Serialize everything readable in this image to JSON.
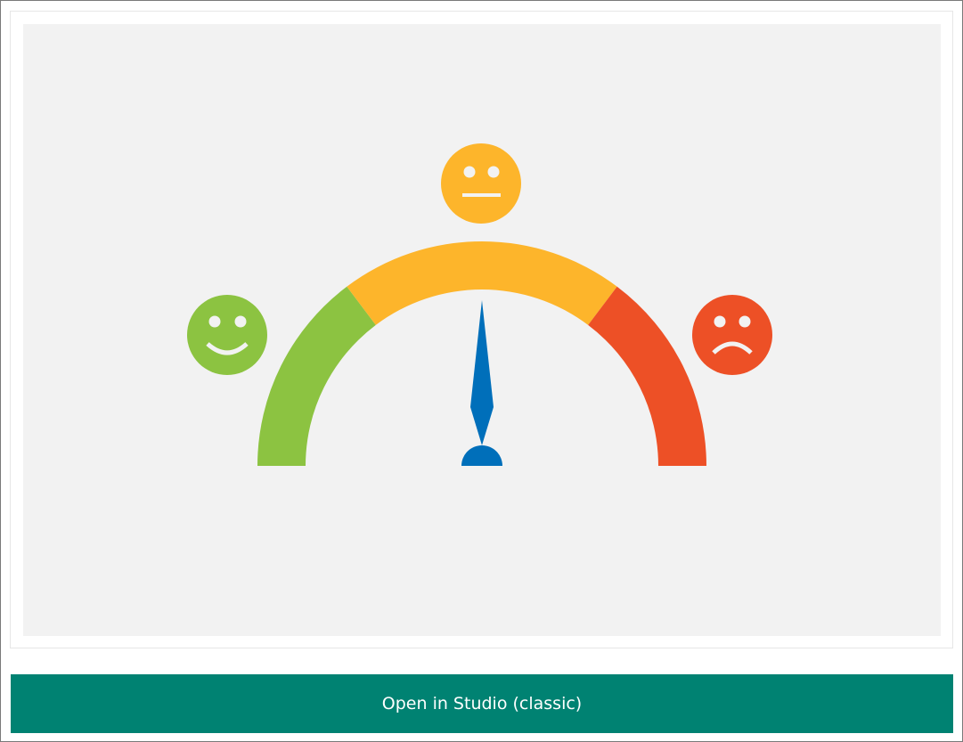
{
  "gauge": {
    "segments": [
      {
        "name": "good",
        "color": "#8cc341"
      },
      {
        "name": "neutral",
        "color": "#fdb52b"
      },
      {
        "name": "bad",
        "color": "#ed5026"
      }
    ],
    "needle_color": "#006fba",
    "needle_value_fraction": 0.5,
    "faces": [
      "happy-face-icon",
      "neutral-face-icon",
      "sad-face-icon"
    ]
  },
  "actions": {
    "open_label": "Open in Studio (classic)",
    "button_color": "#008272"
  }
}
